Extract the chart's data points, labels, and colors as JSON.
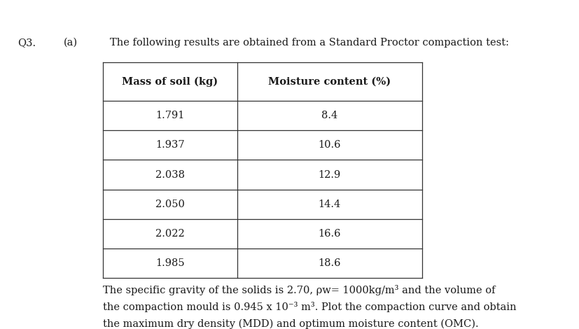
{
  "question_label": "Q3.",
  "part_label": "(a)",
  "intro_text": "The following results are obtained from a Standard Proctor compaction test:",
  "col1_header": "Mass of soil (kg)",
  "col2_header": "Moisture content (%)",
  "mass_of_soil": [
    1.791,
    1.937,
    2.038,
    2.05,
    2.022,
    1.985
  ],
  "moisture_content": [
    "8.4",
    "10.6",
    "12.9",
    "14.4",
    "16.6",
    "18.6"
  ],
  "footer_line1": "The specific gravity of the solids is 2.70, ρw= 1000kg/m³ and the volume of",
  "footer_line2": "the compaction mould is 0.945 x 10⁻³ m³. Plot the compaction curve and obtain",
  "footer_line3": "the maximum dry density (MDD) and optimum moisture content (OMC).",
  "background_color": "#ffffff",
  "text_color": "#1a1a1a",
  "table_border_color": "#333333",
  "font_size_header": 10.5,
  "font_size_table": 10.5,
  "font_size_footer": 10.5,
  "font_size_label": 10.5
}
